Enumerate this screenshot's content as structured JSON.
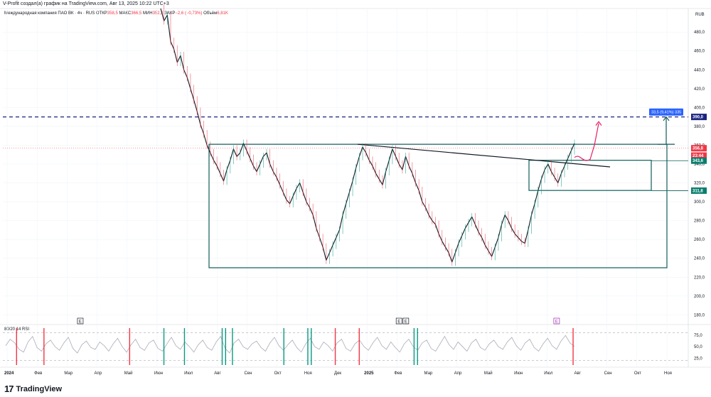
{
  "header": {
    "author_line": "V-Profit создал(а) график на TradingView.com, Авг 13, 2025 10:22 UTC+3"
  },
  "legend": {
    "symbol": "Международная компания ПАО ВК · 4ч · RUS",
    "open_label": "ОТКР",
    "open_value": "358,5",
    "high_label": "МАКС",
    "high_value": "366,5",
    "low_label": "МИН",
    "low_value": "352,2",
    "close_label": "ЗАКР",
    "close_value": "−2,6 (−0,73%)",
    "volume_label": "Объём",
    "volume_value": "6,81K"
  },
  "rsi_label": "80/20 14 RSI",
  "footer": {
    "brand": "TradingView",
    "logo_glyph": "17"
  },
  "chart_data": {
    "type": "line",
    "currency": "RUB",
    "price_axis": {
      "ticks": [
        "480,0",
        "460,0",
        "440,0",
        "420,0",
        "400,0",
        "380,0",
        "360,0",
        "340,0",
        "320,0",
        "300,0",
        "280,0",
        "260,0",
        "240,0",
        "220,0",
        "200,0",
        "180,0"
      ],
      "ylim": [
        175,
        505
      ]
    },
    "time_axis": {
      "ticks": [
        "2024",
        "Фев",
        "Мар",
        "Апр",
        "Май",
        "Июн",
        "Июл",
        "Авг",
        "Сен",
        "Окт",
        "Ноя",
        "Дек",
        "2025",
        "Фев",
        "Мар",
        "Апр",
        "Май",
        "Июн",
        "Июл",
        "Авг",
        "Сен",
        "Окт",
        "Ноя"
      ]
    },
    "series": [
      {
        "values": [
          505,
          492,
          498,
          470,
          462,
          448,
          455,
          440,
          432,
          420,
          408,
          396,
          382,
          372,
          360,
          352,
          344,
          338,
          330,
          322,
          334,
          344,
          356,
          348,
          352,
          362,
          354,
          346,
          338,
          332,
          340,
          348,
          352,
          340,
          332,
          326,
          318,
          310,
          302,
          298,
          306,
          314,
          320,
          310,
          300,
          294,
          286,
          272,
          262,
          252,
          238,
          246,
          254,
          262,
          270,
          286,
          298,
          310,
          322,
          336,
          348,
          358,
          352,
          344,
          338,
          330,
          324,
          318,
          332,
          344,
          356,
          348,
          340,
          334,
          348,
          338,
          330,
          320,
          312,
          300,
          294,
          286,
          280,
          276,
          266,
          258,
          252,
          246,
          236,
          246,
          256,
          264,
          272,
          278,
          284,
          276,
          268,
          262,
          254,
          248,
          242,
          252,
          262,
          276,
          286,
          280,
          272,
          266,
          262,
          258,
          256,
          270,
          286,
          298,
          312,
          324,
          334,
          340,
          332,
          326,
          320,
          330,
          338,
          346,
          354,
          362
        ],
        "color": "#131722"
      }
    ],
    "price_labels": [
      {
        "value": "390,0",
        "price": 390,
        "color": "#1a237e"
      },
      {
        "value": "356,8",
        "price": 356.8,
        "color": "#f23645"
      },
      {
        "value": "23:44",
        "price": 349,
        "color": "#f23645"
      },
      {
        "value": "343,6",
        "price": 343.6,
        "color": "#0a7e6e"
      },
      {
        "value": "311,8",
        "price": 311.8,
        "color": "#0a7e6e"
      }
    ],
    "annotations": {
      "measure_label": "33,5 (9,41%) 335",
      "event_markers": [
        {
          "text": "E",
          "x_frac": 0.113,
          "color": "#131722"
        },
        {
          "text": "E",
          "x_frac": 0.578,
          "color": "#131722"
        },
        {
          "text": "E",
          "x_frac": 0.588,
          "color": "#131722"
        },
        {
          "text": "E",
          "x_frac": 0.808,
          "color": "#9c27b0"
        }
      ]
    },
    "rsi": {
      "ticks": [
        "75,0",
        "50,0",
        "25,0"
      ],
      "ylim": [
        10,
        90
      ],
      "levels": [
        80,
        20
      ],
      "values": [
        52,
        66,
        58,
        44,
        38,
        60,
        72,
        48,
        40,
        56,
        64,
        50,
        42,
        58,
        70,
        46,
        36,
        54,
        62,
        48,
        44,
        60,
        52,
        40,
        56,
        68,
        50,
        38,
        54,
        66,
        48,
        42,
        58,
        64,
        46,
        40,
        56,
        70,
        52,
        44,
        60,
        50,
        38,
        54,
        64,
        48,
        42,
        60,
        72,
        46,
        36,
        58,
        66,
        50,
        44,
        56,
        62,
        48,
        40,
        58,
        70,
        52,
        42,
        54,
        64,
        48,
        38,
        56,
        68,
        50,
        44,
        60,
        52,
        40,
        58,
        66,
        46,
        40,
        56,
        64,
        50,
        42,
        58,
        70,
        52,
        44,
        60,
        48,
        38,
        56,
        66,
        50,
        42,
        58,
        64,
        46,
        40,
        56,
        72,
        54,
        44,
        60,
        50,
        40,
        58,
        66,
        48,
        42,
        56,
        64,
        50,
        44,
        60,
        70,
        52,
        42,
        58,
        66,
        48,
        40,
        56,
        68,
        52,
        44,
        62,
        74,
        58,
        50
      ]
    },
    "colors": {
      "up": "#089981",
      "down": "#f23645",
      "box": "#0f5d58",
      "dashed_level": "#1a237e",
      "projection": "#e91e63",
      "measure_bg": "#2962ff"
    },
    "grid": true,
    "legend_position": "top-left"
  }
}
